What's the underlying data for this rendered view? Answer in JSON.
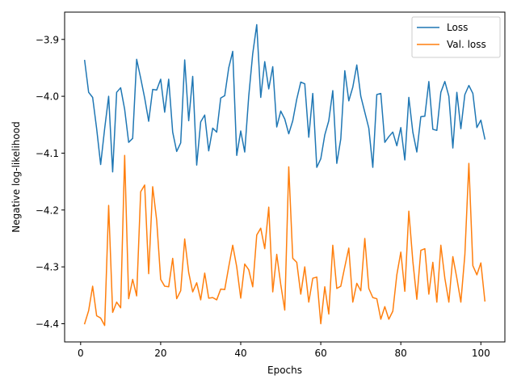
{
  "chart_data": {
    "type": "line",
    "xlabel": "Epochs",
    "ylabel": "Negative log-likelihood",
    "xlim": [
      -4,
      106
    ],
    "ylim": [
      -4.432,
      -3.852
    ],
    "xticks": [
      0,
      20,
      40,
      60,
      80,
      100
    ],
    "xtick_labels": [
      "0",
      "20",
      "40",
      "60",
      "80",
      "100"
    ],
    "yticks": [
      -4.4,
      -4.3,
      -4.2,
      -4.1,
      -4.0,
      -3.9
    ],
    "ytick_labels": [
      "−4.4",
      "−4.3",
      "−4.2",
      "−4.1",
      "−4.0",
      "−3.9"
    ],
    "grid": false,
    "legend_position": "top-right",
    "x": [
      1,
      2,
      3,
      4,
      5,
      6,
      7,
      8,
      9,
      10,
      11,
      12,
      13,
      14,
      15,
      16,
      17,
      18,
      19,
      20,
      21,
      22,
      23,
      24,
      25,
      26,
      27,
      28,
      29,
      30,
      31,
      32,
      33,
      34,
      35,
      36,
      37,
      38,
      39,
      40,
      41,
      42,
      43,
      44,
      45,
      46,
      47,
      48,
      49,
      50,
      51,
      52,
      53,
      54,
      55,
      56,
      57,
      58,
      59,
      60,
      61,
      62,
      63,
      64,
      65,
      66,
      67,
      68,
      69,
      70,
      71,
      72,
      73,
      74,
      75,
      76,
      77,
      78,
      79,
      80,
      81,
      82,
      83,
      84,
      85,
      86,
      87,
      88,
      89,
      90,
      91,
      92,
      93,
      94,
      95,
      96,
      97,
      98,
      99,
      100,
      101
    ],
    "series": [
      {
        "name": "Loss",
        "color": "#1f77b4",
        "values": [
          -3.937,
          -3.993,
          -4.002,
          -4.057,
          -4.12,
          -4.057,
          -4.0,
          -4.133,
          -3.993,
          -3.985,
          -4.023,
          -4.081,
          -4.074,
          -3.935,
          -3.968,
          -4.003,
          -4.044,
          -3.988,
          -3.989,
          -3.97,
          -4.028,
          -3.97,
          -4.063,
          -4.097,
          -4.082,
          -3.936,
          -4.043,
          -3.965,
          -4.121,
          -4.045,
          -4.033,
          -4.096,
          -4.056,
          -4.063,
          -4.003,
          -3.999,
          -3.95,
          -3.921,
          -4.104,
          -4.061,
          -4.098,
          -4.0,
          -3.925,
          -3.874,
          -4.002,
          -3.939,
          -3.987,
          -3.948,
          -4.054,
          -4.026,
          -4.04,
          -4.066,
          -4.043,
          -4.005,
          -3.975,
          -3.978,
          -4.072,
          -3.995,
          -4.125,
          -4.11,
          -4.068,
          -4.043,
          -3.99,
          -4.118,
          -4.075,
          -3.955,
          -4.008,
          -3.984,
          -3.945,
          -4.0,
          -4.028,
          -4.056,
          -4.125,
          -3.997,
          -3.995,
          -4.081,
          -4.071,
          -4.063,
          -4.087,
          -4.055,
          -4.112,
          -4.002,
          -4.063,
          -4.098,
          -4.036,
          -4.035,
          -3.974,
          -4.058,
          -4.06,
          -3.993,
          -3.974,
          -4.0,
          -4.091,
          -3.993,
          -4.057,
          -3.997,
          -3.981,
          -3.995,
          -4.055,
          -4.042,
          -4.075
        ]
      },
      {
        "name": "Val. loss",
        "color": "#ff7f0e",
        "values": [
          -4.4,
          -4.377,
          -4.334,
          -4.386,
          -4.39,
          -4.403,
          -4.192,
          -4.38,
          -4.362,
          -4.372,
          -4.104,
          -4.356,
          -4.322,
          -4.351,
          -4.168,
          -4.156,
          -4.312,
          -4.159,
          -4.218,
          -4.322,
          -4.334,
          -4.335,
          -4.285,
          -4.356,
          -4.342,
          -4.251,
          -4.31,
          -4.344,
          -4.328,
          -4.358,
          -4.311,
          -4.355,
          -4.354,
          -4.358,
          -4.339,
          -4.34,
          -4.3,
          -4.262,
          -4.3,
          -4.355,
          -4.295,
          -4.305,
          -4.335,
          -4.244,
          -4.232,
          -4.268,
          -4.195,
          -4.344,
          -4.278,
          -4.331,
          -4.376,
          -4.124,
          -4.285,
          -4.292,
          -4.348,
          -4.3,
          -4.362,
          -4.32,
          -4.318,
          -4.4,
          -4.335,
          -4.383,
          -4.262,
          -4.338,
          -4.334,
          -4.3,
          -4.267,
          -4.362,
          -4.329,
          -4.342,
          -4.25,
          -4.338,
          -4.354,
          -4.356,
          -4.392,
          -4.37,
          -4.392,
          -4.378,
          -4.314,
          -4.274,
          -4.343,
          -4.202,
          -4.29,
          -4.357,
          -4.271,
          -4.268,
          -4.348,
          -4.292,
          -4.362,
          -4.262,
          -4.32,
          -4.362,
          -4.282,
          -4.32,
          -4.362,
          -4.279,
          -4.118,
          -4.298,
          -4.314,
          -4.293,
          -4.36
        ]
      }
    ]
  }
}
